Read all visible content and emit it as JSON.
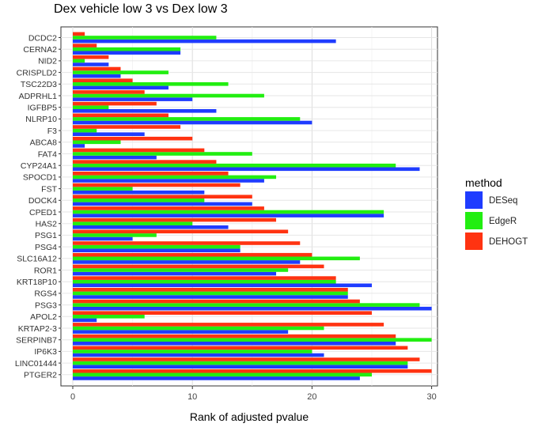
{
  "chart_data": {
    "type": "bar",
    "orientation": "horizontal",
    "title": "Dex vehicle low 3 vs Dex low 3",
    "xlabel": "Rank of adjusted pvalue",
    "ylabel": "",
    "xlim": [
      0,
      31
    ],
    "xticks": [
      0,
      10,
      20,
      30
    ],
    "grid": true,
    "legend": {
      "title": "method",
      "position": "right"
    },
    "categories": [
      "DCDC2",
      "CERNA2",
      "NID2",
      "CRISPLD2",
      "TSC22D3",
      "ADPRHL1",
      "IGFBP5",
      "NLRP10",
      "F3",
      "ABCA8",
      "FAT4",
      "CYP24A1",
      "SPOCD1",
      "FST",
      "DOCK4",
      "CPED1",
      "HAS2",
      "PSG1",
      "PSG4",
      "SLC16A12",
      "ROR1",
      "KRT18P10",
      "RGS4",
      "PSG3",
      "APOL2",
      "KRTAP2-3",
      "SERPINB7",
      "IP6K3",
      "LINC01444",
      "PTGER2"
    ],
    "series": [
      {
        "name": "DESeq",
        "color": "#1f3cff",
        "values": [
          22,
          9,
          3,
          4,
          8,
          10,
          12,
          20,
          6,
          1,
          7,
          29,
          16,
          11,
          15,
          26,
          13,
          5,
          14,
          19,
          17,
          25,
          23,
          30,
          2,
          18,
          27,
          21,
          28,
          24
        ]
      },
      {
        "name": "EdgeR",
        "color": "#22ee11",
        "values": [
          12,
          9,
          1,
          8,
          13,
          16,
          3,
          19,
          2,
          4,
          15,
          27,
          17,
          5,
          11,
          26,
          10,
          7,
          14,
          24,
          18,
          22,
          23,
          29,
          6,
          21,
          30,
          20,
          28,
          25
        ]
      },
      {
        "name": "DEHOGT",
        "color": "#ff3311",
        "values": [
          1,
          2,
          3,
          4,
          5,
          6,
          7,
          8,
          9,
          10,
          11,
          12,
          13,
          14,
          15,
          16,
          17,
          18,
          19,
          20,
          21,
          22,
          23,
          24,
          25,
          26,
          27,
          28,
          29,
          30
        ]
      }
    ]
  }
}
